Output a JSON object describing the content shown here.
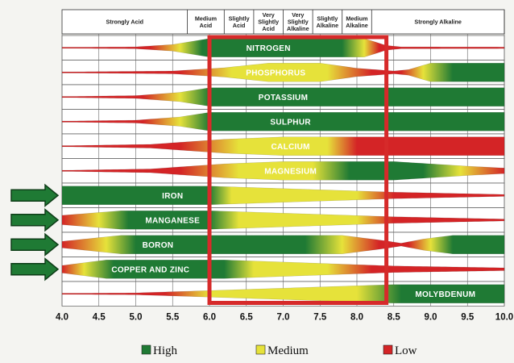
{
  "chart_data": {
    "type": "band",
    "x_ticks": [
      4.0,
      4.5,
      5.0,
      5.5,
      6.0,
      6.5,
      7.0,
      7.5,
      8.0,
      8.5,
      9.0,
      9.5,
      10.0
    ],
    "x_tick_labels": [
      "4.0",
      "4.5",
      "5.0",
      "5.5",
      "6.0",
      "6.5",
      "7.0",
      "7.5",
      "8.0",
      "8.5",
      "9.0",
      "9.5",
      "10.0"
    ],
    "xlim": [
      4.0,
      10.0
    ],
    "zones": [
      {
        "label": "Strongly Acid",
        "from": 4.0,
        "to": 5.7
      },
      {
        "label": "Medium Acid",
        "from": 5.7,
        "to": 6.2
      },
      {
        "label": "Slightly Acid",
        "from": 6.2,
        "to": 6.6
      },
      {
        "label": "Very Slightly Acid",
        "from": 6.6,
        "to": 7.0
      },
      {
        "label": "Very Slightly Alkaline",
        "from": 7.0,
        "to": 7.4
      },
      {
        "label": "Slightly Alkaline",
        "from": 7.4,
        "to": 7.8
      },
      {
        "label": "Medium Alkaline",
        "from": 7.8,
        "to": 8.2
      },
      {
        "label": "Strongly Alkaline",
        "from": 8.2,
        "to": 10.0
      }
    ],
    "optimal_range": [
      6.0,
      8.4
    ],
    "arrow_rows": [
      7,
      8,
      9,
      10
    ],
    "levels": {
      "high": "#1f7a34",
      "medium": "#e6e23a",
      "low": "#d42426"
    },
    "nutrients": [
      {
        "name": "NITROGEN",
        "label_at": 6.8,
        "profile": [
          [
            4.0,
            0.05
          ],
          [
            5.0,
            0.1
          ],
          [
            5.5,
            0.35
          ],
          [
            6.0,
            1
          ],
          [
            8.1,
            1
          ],
          [
            8.4,
            0.25
          ],
          [
            8.6,
            0.1
          ],
          [
            10.0,
            0.08
          ]
        ],
        "colors": [
          [
            4.0,
            "low"
          ],
          [
            5.2,
            "low"
          ],
          [
            5.6,
            "medium"
          ],
          [
            5.9,
            "high"
          ],
          [
            7.8,
            "high"
          ],
          [
            8.1,
            "medium"
          ],
          [
            8.3,
            "low"
          ],
          [
            10.0,
            "low"
          ]
        ]
      },
      {
        "name": "PHOSPHORUS",
        "label_at": 6.9,
        "profile": [
          [
            4.0,
            0.05
          ],
          [
            5.5,
            0.15
          ],
          [
            6.2,
            0.5
          ],
          [
            6.8,
            1
          ],
          [
            7.5,
            1
          ],
          [
            8.0,
            0.45
          ],
          [
            8.5,
            0.15
          ],
          [
            8.7,
            0.3
          ],
          [
            9.0,
            1
          ],
          [
            10.0,
            1
          ]
        ],
        "colors": [
          [
            4.0,
            "low"
          ],
          [
            5.6,
            "low"
          ],
          [
            6.3,
            "medium"
          ],
          [
            7.6,
            "medium"
          ],
          [
            8.2,
            "low"
          ],
          [
            8.6,
            "low"
          ],
          [
            8.9,
            "medium"
          ],
          [
            9.3,
            "high"
          ],
          [
            10.0,
            "high"
          ]
        ]
      },
      {
        "name": "POTASSIUM",
        "label_at": 7.0,
        "profile": [
          [
            4.0,
            0.05
          ],
          [
            5.0,
            0.15
          ],
          [
            5.6,
            0.5
          ],
          [
            6.0,
            1
          ],
          [
            10.0,
            1
          ]
        ],
        "colors": [
          [
            4.0,
            "low"
          ],
          [
            5.1,
            "low"
          ],
          [
            5.6,
            "medium"
          ],
          [
            6.0,
            "high"
          ],
          [
            10.0,
            "high"
          ]
        ]
      },
      {
        "name": "SULPHUR",
        "label_at": 7.1,
        "profile": [
          [
            4.0,
            0.05
          ],
          [
            5.0,
            0.15
          ],
          [
            5.6,
            0.5
          ],
          [
            6.0,
            1
          ],
          [
            10.0,
            1
          ]
        ],
        "colors": [
          [
            4.0,
            "low"
          ],
          [
            5.1,
            "low"
          ],
          [
            5.6,
            "medium"
          ],
          [
            6.0,
            "high"
          ],
          [
            10.0,
            "high"
          ]
        ]
      },
      {
        "name": "CALCIUM",
        "label_at": 7.1,
        "profile": [
          [
            4.0,
            0.05
          ],
          [
            5.2,
            0.2
          ],
          [
            6.2,
            0.75
          ],
          [
            7.0,
            1
          ],
          [
            10.0,
            1
          ]
        ],
        "colors": [
          [
            4.0,
            "low"
          ],
          [
            5.6,
            "low"
          ],
          [
            6.4,
            "medium"
          ],
          [
            7.6,
            "medium"
          ],
          [
            8.0,
            "low"
          ],
          [
            10.0,
            "low"
          ]
        ]
      },
      {
        "name": "MAGNESIUM",
        "label_at": 7.1,
        "profile": [
          [
            4.0,
            0.05
          ],
          [
            5.2,
            0.2
          ],
          [
            6.2,
            0.75
          ],
          [
            7.0,
            1
          ],
          [
            8.5,
            1
          ],
          [
            9.5,
            0.5
          ],
          [
            10.0,
            0.3
          ]
        ],
        "colors": [
          [
            4.0,
            "low"
          ],
          [
            5.6,
            "low"
          ],
          [
            6.4,
            "medium"
          ],
          [
            7.4,
            "medium"
          ],
          [
            7.9,
            "high"
          ],
          [
            8.9,
            "high"
          ],
          [
            9.4,
            "medium"
          ],
          [
            10.0,
            "low"
          ]
        ]
      },
      {
        "name": "IRON",
        "label_at": 5.5,
        "profile": [
          [
            4.0,
            1
          ],
          [
            6.0,
            1
          ],
          [
            8.5,
            0.35
          ],
          [
            10.0,
            0.1
          ]
        ],
        "colors": [
          [
            4.0,
            "high"
          ],
          [
            6.0,
            "high"
          ],
          [
            6.3,
            "medium"
          ],
          [
            8.0,
            "medium"
          ],
          [
            8.5,
            "low"
          ],
          [
            10.0,
            "low"
          ]
        ]
      },
      {
        "name": "MANGANESE",
        "label_at": 5.5,
        "profile": [
          [
            4.0,
            0.5
          ],
          [
            4.8,
            1
          ],
          [
            6.0,
            1
          ],
          [
            8.5,
            0.35
          ],
          [
            10.0,
            0.1
          ]
        ],
        "colors": [
          [
            4.0,
            "low"
          ],
          [
            4.5,
            "medium"
          ],
          [
            4.9,
            "high"
          ],
          [
            6.0,
            "high"
          ],
          [
            6.4,
            "medium"
          ],
          [
            8.0,
            "medium"
          ],
          [
            8.5,
            "low"
          ],
          [
            10.0,
            "low"
          ]
        ]
      },
      {
        "name": "BORON",
        "label_at": 5.3,
        "profile": [
          [
            4.0,
            0.35
          ],
          [
            4.8,
            1
          ],
          [
            7.8,
            1
          ],
          [
            8.4,
            0.4
          ],
          [
            8.6,
            0.15
          ],
          [
            8.9,
            0.6
          ],
          [
            9.3,
            1
          ],
          [
            10.0,
            1
          ]
        ],
        "colors": [
          [
            4.0,
            "low"
          ],
          [
            4.6,
            "medium"
          ],
          [
            5.0,
            "high"
          ],
          [
            7.3,
            "high"
          ],
          [
            7.8,
            "medium"
          ],
          [
            8.3,
            "low"
          ],
          [
            8.7,
            "low"
          ],
          [
            9.0,
            "medium"
          ],
          [
            9.3,
            "high"
          ],
          [
            10.0,
            "high"
          ]
        ]
      },
      {
        "name": "COPPER AND ZINC",
        "label_at": 5.2,
        "profile": [
          [
            4.0,
            0.4
          ],
          [
            4.6,
            1
          ],
          [
            6.2,
            1
          ],
          [
            8.5,
            0.35
          ],
          [
            10.0,
            0.15
          ]
        ],
        "colors": [
          [
            4.0,
            "low"
          ],
          [
            4.3,
            "medium"
          ],
          [
            4.7,
            "high"
          ],
          [
            6.2,
            "high"
          ],
          [
            6.6,
            "medium"
          ],
          [
            7.6,
            "medium"
          ],
          [
            8.2,
            "low"
          ],
          [
            10.0,
            "low"
          ]
        ]
      },
      {
        "name": "MOLYBDENUM",
        "label_at": 9.2,
        "profile": [
          [
            4.0,
            0.05
          ],
          [
            5.0,
            0.1
          ],
          [
            6.0,
            0.35
          ],
          [
            8.5,
            1
          ],
          [
            10.0,
            1
          ]
        ],
        "colors": [
          [
            4.0,
            "low"
          ],
          [
            5.4,
            "low"
          ],
          [
            6.0,
            "medium"
          ],
          [
            8.0,
            "medium"
          ],
          [
            8.6,
            "high"
          ],
          [
            10.0,
            "high"
          ]
        ]
      }
    ],
    "legend": [
      {
        "label": "High",
        "level": "high"
      },
      {
        "label": "Medium",
        "level": "medium"
      },
      {
        "label": "Low",
        "level": "low"
      }
    ]
  }
}
